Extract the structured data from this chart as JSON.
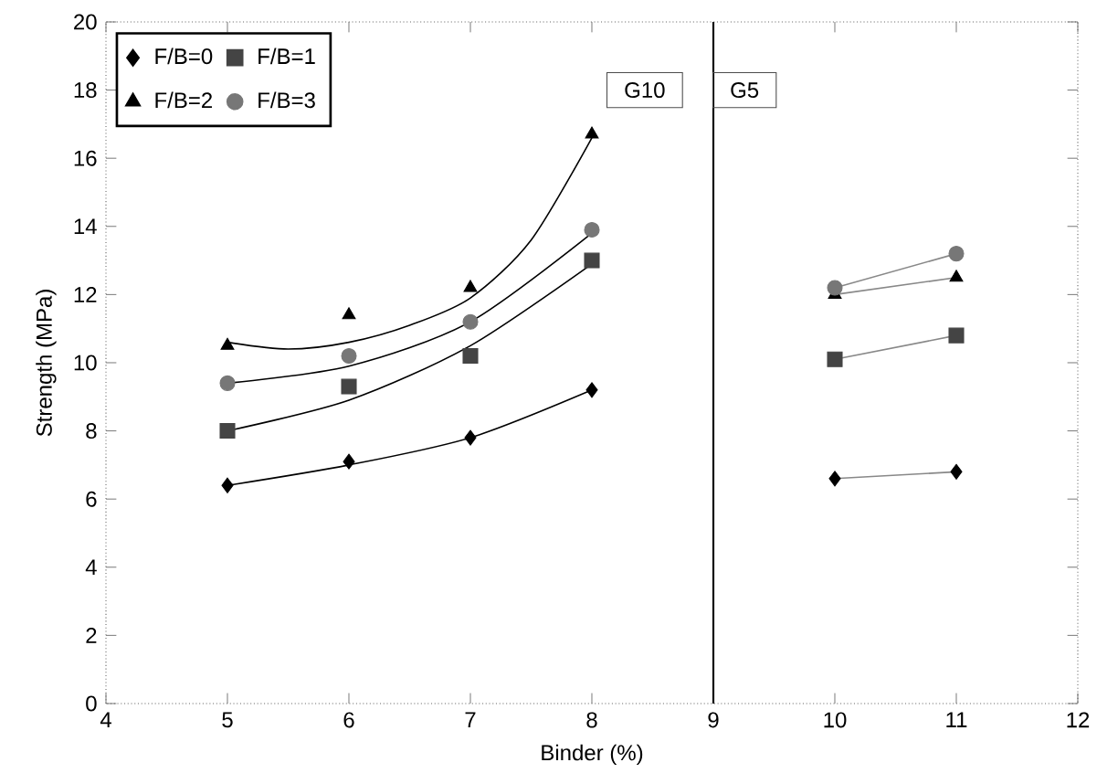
{
  "chart_data": {
    "type": "scatter",
    "xlabel": "Binder (%)",
    "ylabel": "Strength (MPa)",
    "xlim": [
      4,
      12
    ],
    "ylim": [
      0,
      20
    ],
    "xticks": [
      4,
      5,
      6,
      7,
      8,
      9,
      10,
      11,
      12
    ],
    "yticks": [
      0,
      2,
      4,
      6,
      8,
      10,
      12,
      14,
      16,
      18,
      20
    ],
    "grid": false,
    "legend": "top left",
    "annotations": [
      "G10",
      "G5"
    ],
    "ref_lines": [
      {
        "axis": "x",
        "value": 9,
        "color": "#000000"
      }
    ],
    "series": [
      {
        "name": "F/B=0",
        "marker": "diamond",
        "color": "#000000",
        "x": [
          5,
          6,
          7,
          8,
          10,
          11
        ],
        "values": [
          6.4,
          7.1,
          7.8,
          9.2,
          6.6,
          6.8
        ]
      },
      {
        "name": "F/B=1",
        "marker": "square",
        "color": "#444444",
        "x": [
          5,
          6,
          7,
          8,
          10,
          11
        ],
        "values": [
          8.0,
          9.3,
          10.2,
          13.0,
          10.1,
          10.8
        ]
      },
      {
        "name": "F/B=2",
        "marker": "triangle",
        "color": "#000000",
        "x": [
          5,
          6,
          7,
          8,
          10,
          11
        ],
        "values": [
          10.5,
          11.4,
          12.2,
          16.7,
          12.0,
          12.5
        ]
      },
      {
        "name": "F/B=3",
        "marker": "circle",
        "color": "#777777",
        "x": [
          5,
          6,
          7,
          8,
          10,
          11
        ],
        "values": [
          9.4,
          10.2,
          11.2,
          13.9,
          12.2,
          13.2
        ]
      },
      {
        "type": "line",
        "marker": "none",
        "color": "#000000",
        "x": [
          5,
          6,
          7,
          8
        ],
        "values": [
          6.4,
          7.0,
          7.8,
          9.2
        ]
      },
      {
        "type": "line",
        "marker": "none",
        "color": "#000000",
        "x": [
          5,
          6,
          7,
          8
        ],
        "values": [
          8.0,
          8.9,
          10.5,
          12.9
        ]
      },
      {
        "type": "line",
        "marker": "none",
        "color": "#000000",
        "x": [
          5,
          5.5,
          6,
          6.5,
          7,
          7.5,
          8
        ],
        "values": [
          10.6,
          10.4,
          10.6,
          11.1,
          11.9,
          13.6,
          16.6
        ]
      },
      {
        "type": "line",
        "marker": "none",
        "color": "#000000",
        "x": [
          5,
          6,
          7,
          8
        ],
        "values": [
          9.4,
          9.9,
          11.2,
          13.8
        ]
      },
      {
        "type": "line",
        "marker": "none",
        "color": "#888888",
        "x": [
          10,
          11
        ],
        "values": [
          6.6,
          6.8
        ]
      },
      {
        "type": "line",
        "marker": "none",
        "color": "#888888",
        "x": [
          10,
          11
        ],
        "values": [
          10.1,
          10.8
        ]
      },
      {
        "type": "line",
        "marker": "none",
        "color": "#888888",
        "x": [
          10,
          11
        ],
        "values": [
          12.0,
          12.5
        ]
      },
      {
        "type": "line",
        "marker": "none",
        "color": "#888888",
        "x": [
          10,
          11
        ],
        "values": [
          12.2,
          13.2
        ]
      }
    ]
  }
}
